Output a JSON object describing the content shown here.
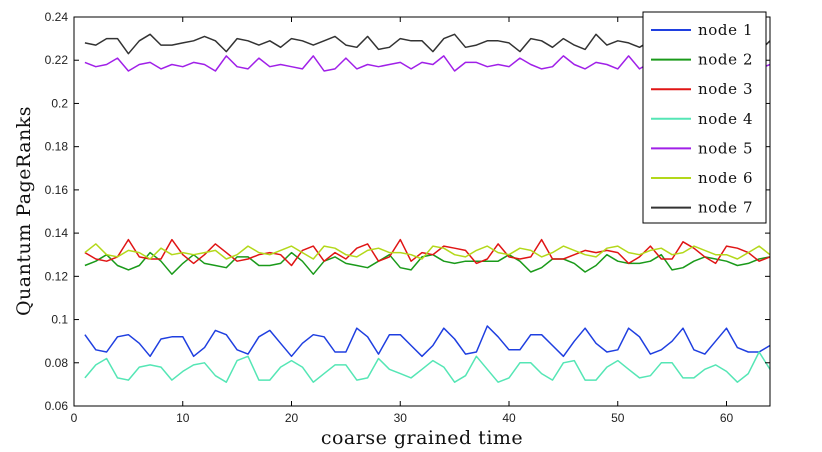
{
  "chart_data": {
    "type": "line",
    "title": "",
    "xlabel": "coarse grained time",
    "ylabel": "Quantum PageRanks",
    "xlim": [
      0,
      64
    ],
    "ylim": [
      0.06,
      0.24
    ],
    "xticks": [
      0,
      10,
      20,
      30,
      40,
      50,
      60
    ],
    "yticks": [
      0.06,
      0.08,
      0.1,
      0.12,
      0.14,
      0.16,
      0.18,
      0.2,
      0.22,
      0.24
    ],
    "xtick_labels": [
      "0",
      "10",
      "20",
      "30",
      "40",
      "50",
      "60"
    ],
    "ytick_labels": [
      "0.06",
      "0.08",
      "0.1",
      "0.12",
      "0.14",
      "0.16",
      "0.18",
      "0.2",
      "0.22",
      "0.24"
    ],
    "legend_position": "top-right",
    "x": [
      1,
      2,
      3,
      4,
      5,
      6,
      7,
      8,
      9,
      10,
      11,
      12,
      13,
      14,
      15,
      16,
      17,
      18,
      19,
      20,
      21,
      22,
      23,
      24,
      25,
      26,
      27,
      28,
      29,
      30,
      31,
      32,
      33,
      34,
      35,
      36,
      37,
      38,
      39,
      40,
      41,
      42,
      43,
      44,
      45,
      46,
      47,
      48,
      49,
      50,
      51,
      52,
      53,
      54,
      55,
      56,
      57,
      58,
      59,
      60,
      61,
      62,
      63,
      64
    ],
    "series": [
      {
        "name": "node 1",
        "color": "#1f3fe0",
        "values": [
          0.093,
          0.086,
          0.085,
          0.092,
          0.093,
          0.089,
          0.083,
          0.091,
          0.092,
          0.092,
          0.083,
          0.087,
          0.095,
          0.093,
          0.086,
          0.084,
          0.092,
          0.095,
          0.089,
          0.083,
          0.089,
          0.093,
          0.092,
          0.085,
          0.085,
          0.096,
          0.092,
          0.084,
          0.093,
          0.093,
          0.088,
          0.083,
          0.088,
          0.096,
          0.091,
          0.084,
          0.085,
          0.097,
          0.092,
          0.086,
          0.086,
          0.093,
          0.093,
          0.088,
          0.083,
          0.09,
          0.096,
          0.089,
          0.085,
          0.086,
          0.096,
          0.092,
          0.084,
          0.086,
          0.09,
          0.096,
          0.086,
          0.084,
          0.09,
          0.096,
          0.087,
          0.085,
          0.085,
          0.088
        ]
      },
      {
        "name": "node 2",
        "color": "#1a9a1a",
        "values": [
          0.125,
          0.127,
          0.13,
          0.125,
          0.123,
          0.125,
          0.131,
          0.127,
          0.121,
          0.126,
          0.13,
          0.126,
          0.125,
          0.124,
          0.129,
          0.129,
          0.125,
          0.125,
          0.126,
          0.131,
          0.127,
          0.121,
          0.127,
          0.129,
          0.126,
          0.125,
          0.124,
          0.127,
          0.13,
          0.124,
          0.123,
          0.129,
          0.13,
          0.127,
          0.126,
          0.127,
          0.127,
          0.127,
          0.127,
          0.13,
          0.127,
          0.122,
          0.124,
          0.128,
          0.128,
          0.126,
          0.122,
          0.125,
          0.13,
          0.127,
          0.126,
          0.126,
          0.127,
          0.13,
          0.123,
          0.124,
          0.127,
          0.129,
          0.128,
          0.127,
          0.125,
          0.126,
          0.128,
          0.129
        ]
      },
      {
        "name": "node 3",
        "color": "#e01515",
        "values": [
          0.131,
          0.128,
          0.127,
          0.129,
          0.137,
          0.129,
          0.128,
          0.128,
          0.137,
          0.13,
          0.126,
          0.13,
          0.135,
          0.131,
          0.127,
          0.128,
          0.13,
          0.131,
          0.13,
          0.125,
          0.132,
          0.134,
          0.127,
          0.131,
          0.128,
          0.133,
          0.135,
          0.127,
          0.129,
          0.137,
          0.127,
          0.131,
          0.13,
          0.134,
          0.133,
          0.132,
          0.126,
          0.128,
          0.135,
          0.129,
          0.128,
          0.129,
          0.137,
          0.128,
          0.128,
          0.13,
          0.132,
          0.131,
          0.132,
          0.131,
          0.126,
          0.129,
          0.134,
          0.128,
          0.128,
          0.136,
          0.133,
          0.129,
          0.126,
          0.134,
          0.133,
          0.131,
          0.127,
          0.129
        ]
      },
      {
        "name": "node 4",
        "color": "#55e6b5",
        "values": [
          0.073,
          0.079,
          0.082,
          0.073,
          0.072,
          0.078,
          0.079,
          0.078,
          0.072,
          0.076,
          0.079,
          0.08,
          0.074,
          0.071,
          0.081,
          0.083,
          0.072,
          0.072,
          0.078,
          0.081,
          0.078,
          0.071,
          0.075,
          0.079,
          0.079,
          0.072,
          0.073,
          0.082,
          0.077,
          0.075,
          0.073,
          0.077,
          0.081,
          0.078,
          0.071,
          0.074,
          0.083,
          0.077,
          0.071,
          0.073,
          0.08,
          0.08,
          0.075,
          0.072,
          0.08,
          0.081,
          0.072,
          0.072,
          0.078,
          0.081,
          0.077,
          0.073,
          0.074,
          0.08,
          0.08,
          0.073,
          0.073,
          0.077,
          0.079,
          0.076,
          0.071,
          0.075,
          0.085,
          0.077
        ]
      },
      {
        "name": "node 5",
        "color": "#a020e8",
        "values": [
          0.219,
          0.217,
          0.218,
          0.221,
          0.215,
          0.218,
          0.219,
          0.216,
          0.218,
          0.217,
          0.219,
          0.218,
          0.215,
          0.222,
          0.217,
          0.216,
          0.221,
          0.217,
          0.218,
          0.217,
          0.216,
          0.222,
          0.215,
          0.216,
          0.221,
          0.216,
          0.218,
          0.217,
          0.218,
          0.219,
          0.216,
          0.219,
          0.218,
          0.222,
          0.215,
          0.219,
          0.219,
          0.217,
          0.218,
          0.217,
          0.221,
          0.218,
          0.216,
          0.217,
          0.222,
          0.218,
          0.216,
          0.219,
          0.218,
          0.216,
          0.222,
          0.216,
          0.219,
          0.218,
          0.216,
          0.221,
          0.218,
          0.216,
          0.22,
          0.217,
          0.218,
          0.219,
          0.216,
          0.218
        ]
      },
      {
        "name": "node 6",
        "color": "#b3d81a",
        "values": [
          0.131,
          0.135,
          0.13,
          0.129,
          0.132,
          0.131,
          0.128,
          0.133,
          0.13,
          0.131,
          0.13,
          0.131,
          0.132,
          0.128,
          0.13,
          0.134,
          0.131,
          0.13,
          0.132,
          0.134,
          0.131,
          0.128,
          0.134,
          0.133,
          0.13,
          0.129,
          0.132,
          0.133,
          0.131,
          0.131,
          0.13,
          0.128,
          0.134,
          0.133,
          0.13,
          0.129,
          0.132,
          0.134,
          0.131,
          0.13,
          0.133,
          0.132,
          0.129,
          0.131,
          0.134,
          0.132,
          0.13,
          0.129,
          0.133,
          0.134,
          0.131,
          0.13,
          0.132,
          0.133,
          0.13,
          0.131,
          0.134,
          0.132,
          0.13,
          0.13,
          0.128,
          0.131,
          0.134,
          0.13
        ]
      },
      {
        "name": "node 7",
        "color": "#333333",
        "values": [
          0.228,
          0.227,
          0.23,
          0.23,
          0.223,
          0.229,
          0.232,
          0.227,
          0.227,
          0.228,
          0.229,
          0.231,
          0.229,
          0.224,
          0.23,
          0.229,
          0.227,
          0.229,
          0.226,
          0.23,
          0.229,
          0.227,
          0.229,
          0.231,
          0.227,
          0.226,
          0.231,
          0.225,
          0.226,
          0.23,
          0.229,
          0.229,
          0.224,
          0.23,
          0.232,
          0.226,
          0.227,
          0.229,
          0.229,
          0.228,
          0.224,
          0.23,
          0.229,
          0.226,
          0.23,
          0.227,
          0.225,
          0.232,
          0.227,
          0.229,
          0.228,
          0.226,
          0.229,
          0.228,
          0.229,
          0.227,
          0.23,
          0.228,
          0.227,
          0.23,
          0.228,
          0.232,
          0.224,
          0.229
        ]
      }
    ]
  }
}
